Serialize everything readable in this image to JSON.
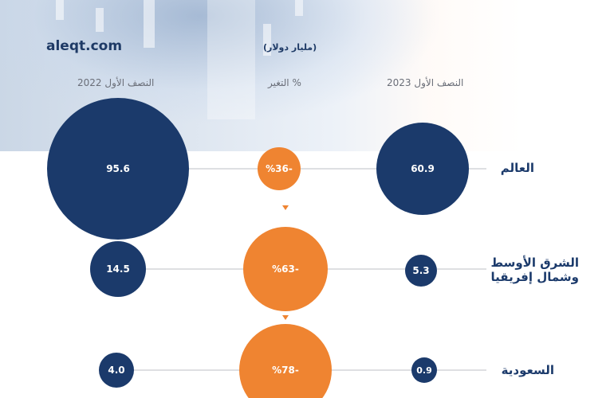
{
  "brand": "aleqt.com",
  "unit": "(مليار دولار)",
  "headers": {
    "h2022": "النصف الأول 2022",
    "change": "التغير %",
    "h2023": "النصف الأول 2023"
  },
  "colors": {
    "navy": "#1b3a6b",
    "orange": "#ef8431"
  },
  "chart_data": {
    "type": "bubble",
    "categories": [
      "العالم",
      "الشرق الأوسط وشمال إفريقيا",
      "السعودية"
    ],
    "series": [
      {
        "name": "النصف الأول 2022",
        "values": [
          95.6,
          14.5,
          4.0
        ],
        "labels": [
          "95.6",
          "14.5",
          "4.0"
        ]
      },
      {
        "name": "التغير %",
        "values": [
          -36,
          -63,
          -78
        ],
        "labels": [
          "%36-",
          "%63-",
          "%78-"
        ]
      },
      {
        "name": "النصف الأول 2023",
        "values": [
          60.9,
          5.3,
          0.9
        ],
        "labels": [
          "60.9",
          "5.3",
          "0.9"
        ]
      }
    ],
    "rows": [
      {
        "label_line1": "العالم",
        "label_line2": ""
      },
      {
        "label_line1": "الشرق الأوسط",
        "label_line2": "وشمال إفريقيا"
      },
      {
        "label_line1": "السعودية",
        "label_line2": ""
      }
    ]
  }
}
